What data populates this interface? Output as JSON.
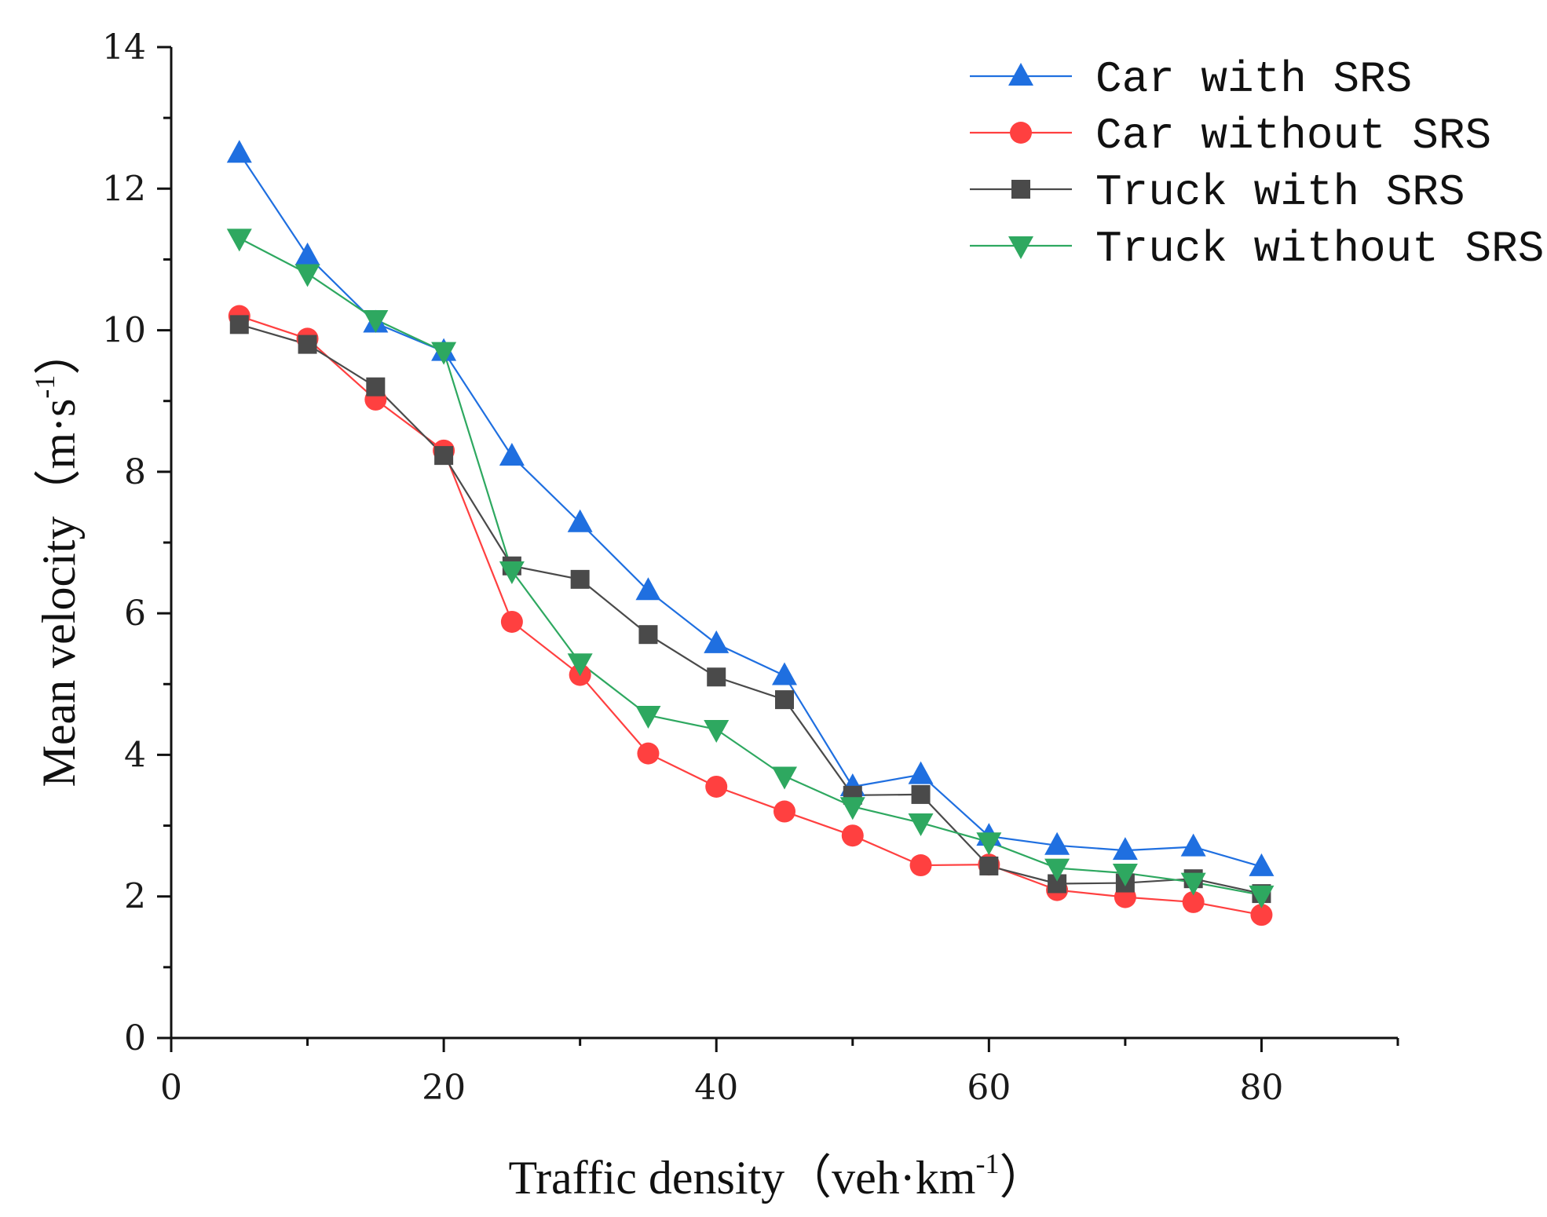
{
  "chart_data": {
    "type": "line",
    "title": "",
    "xlabel": "Traffic density（veh·km",
    "xlabel_sup": "-1",
    "xlabel_close": "）",
    "ylabel": "Mean velocity（m·s",
    "ylabel_sup": "-1",
    "ylabel_close": "）",
    "xlim": [
      0,
      90
    ],
    "ylim": [
      0,
      14
    ],
    "x_ticks": [
      0,
      20,
      40,
      60,
      80
    ],
    "y_ticks": [
      0,
      2,
      4,
      6,
      8,
      10,
      12,
      14
    ],
    "grid": false,
    "legend_position": "top-right",
    "x": [
      5,
      10,
      15,
      20,
      25,
      30,
      35,
      40,
      45,
      50,
      55,
      60,
      65,
      70,
      75,
      80
    ],
    "series": [
      {
        "name": "Car with SRS",
        "color": "#1f6fe0",
        "marker": "triangle-up",
        "values": [
          12.5,
          11.05,
          10.1,
          9.7,
          8.22,
          7.28,
          6.32,
          5.57,
          5.12,
          3.55,
          3.72,
          2.85,
          2.72,
          2.65,
          2.7,
          2.42
        ]
      },
      {
        "name": "Car without SRS",
        "color": "#ff4040",
        "marker": "circle",
        "values": [
          10.2,
          9.88,
          9.02,
          8.3,
          5.88,
          5.13,
          4.02,
          3.55,
          3.2,
          2.86,
          2.44,
          2.45,
          2.09,
          1.99,
          1.92,
          1.74
        ]
      },
      {
        "name": "Truck with SRS",
        "color": "#4a4a4a",
        "marker": "square",
        "values": [
          10.08,
          9.8,
          9.2,
          8.23,
          6.67,
          6.48,
          5.7,
          5.1,
          4.78,
          3.43,
          3.44,
          2.43,
          2.18,
          2.19,
          2.25,
          2.04
        ]
      },
      {
        "name": "Truck without SRS",
        "color": "#2ea860",
        "marker": "triangle-down",
        "values": [
          11.3,
          10.8,
          10.15,
          9.7,
          6.6,
          5.3,
          4.56,
          4.36,
          3.7,
          3.27,
          3.04,
          2.77,
          2.4,
          2.33,
          2.2,
          2.02
        ]
      }
    ]
  }
}
